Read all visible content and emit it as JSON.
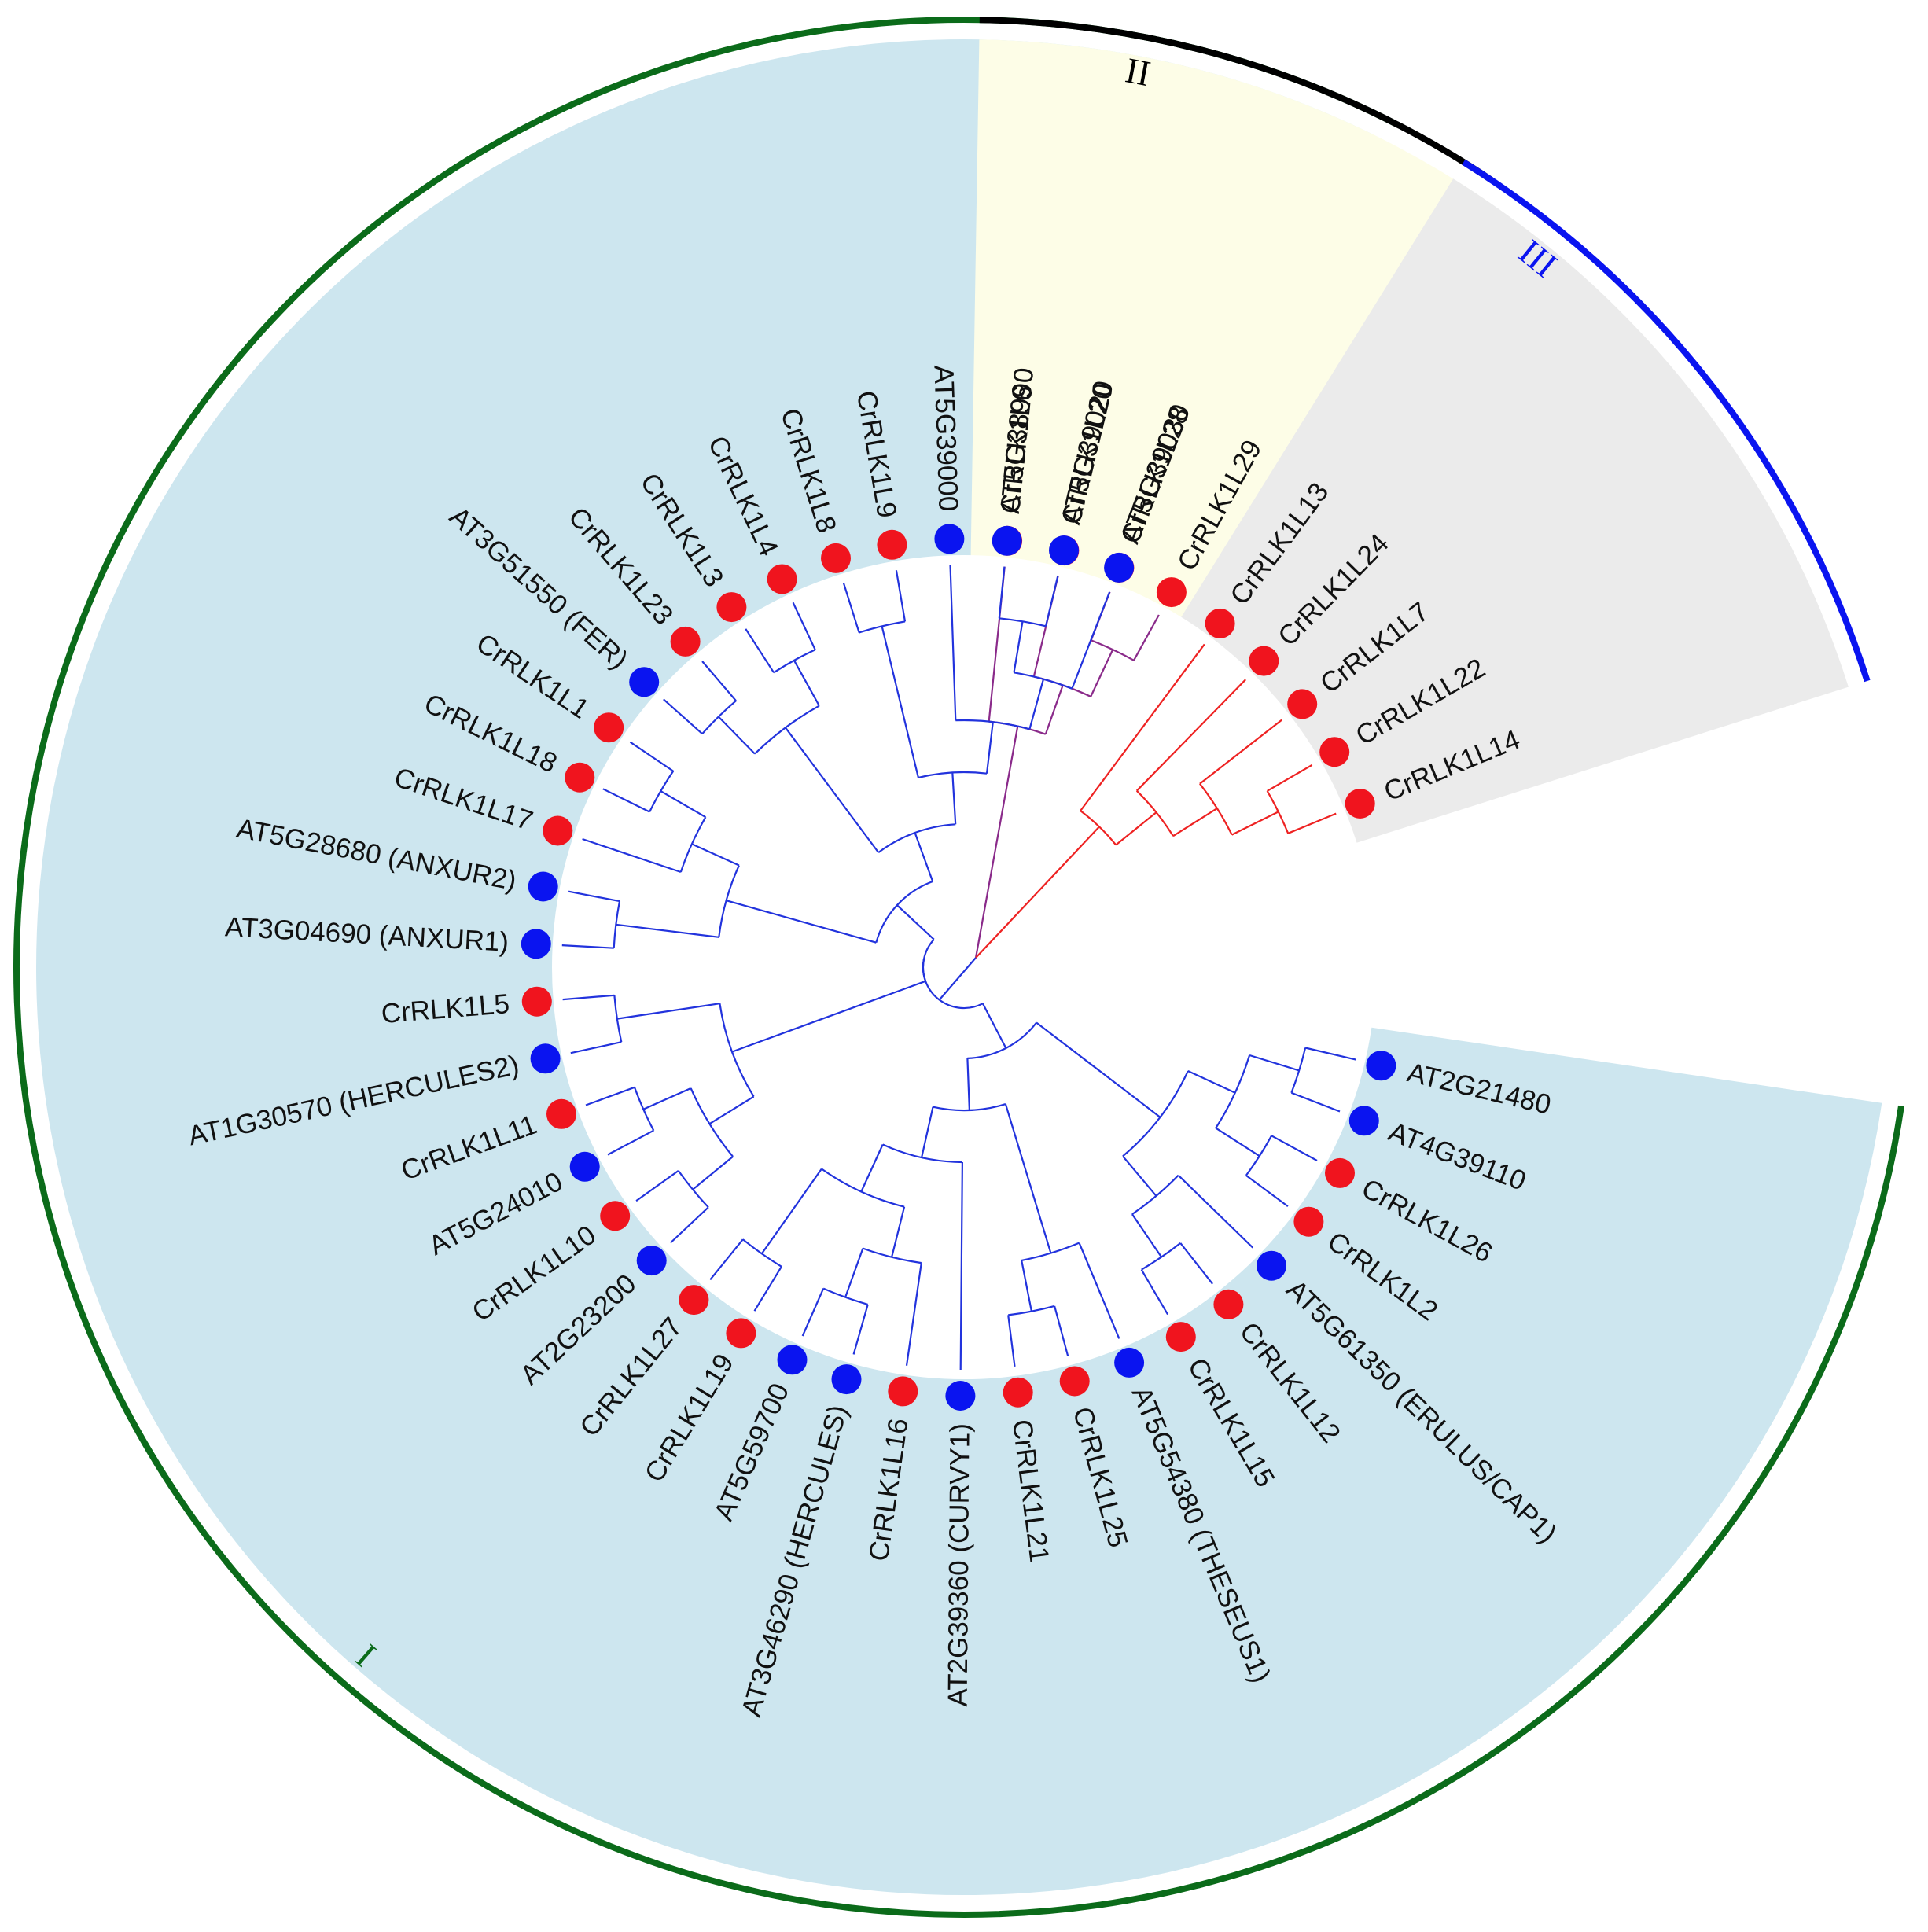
{
  "colors": {
    "arabidopsis": "#0a14f0",
    "cucumber": "#f0141e",
    "group_I": "#0b6b1a",
    "group_II": "#000000",
    "group_III": "#0a14f0",
    "sector_I": "#cde6ef",
    "sector_II": "#fdfde7",
    "sector_III": "#ebebeb",
    "branches_I": "#2233dd",
    "branches_II": "#8a2a8a",
    "branches_III": "#ee2222"
  },
  "groups": [
    {
      "id": "I",
      "label": "I"
    },
    {
      "id": "II",
      "label": "II"
    },
    {
      "id": "III",
      "label": "III"
    }
  ],
  "leaves": [
    {
      "label": "CrRLK1L6",
      "group": "II",
      "species": "cucumber"
    },
    {
      "label": "CrRLK1L20",
      "group": "II",
      "species": "cucumber"
    },
    {
      "label": "CrRLK1L28",
      "group": "II",
      "species": "cucumber"
    },
    {
      "label": "CrRLK1L29",
      "group": "II",
      "species": "cucumber"
    },
    {
      "label": "CrRLK1L13",
      "group": "III",
      "species": "cucumber"
    },
    {
      "label": "CrRLK1L24",
      "group": "III",
      "species": "cucumber"
    },
    {
      "label": "CrRLK1L7",
      "group": "III",
      "species": "cucumber"
    },
    {
      "label": "CrRLK1L22",
      "group": "III",
      "species": "cucumber"
    },
    {
      "label": "CrRLK1L14",
      "group": "III",
      "species": "cucumber"
    },
    {
      "label": "AT2G21480",
      "group": "I",
      "species": "arabidopsis"
    },
    {
      "label": "AT4G39110",
      "group": "I",
      "species": "arabidopsis"
    },
    {
      "label": "CrRLK1L26",
      "group": "I",
      "species": "cucumber"
    },
    {
      "label": "CrRLK1L2",
      "group": "I",
      "species": "cucumber"
    },
    {
      "label": "AT5G61350 (ERULUS/CAP1)",
      "group": "I",
      "species": "arabidopsis"
    },
    {
      "label": "CrRLK1L12",
      "group": "I",
      "species": "cucumber"
    },
    {
      "label": "CrRLK1L15",
      "group": "I",
      "species": "cucumber"
    },
    {
      "label": "AT5G54380 (THESEUS1)",
      "group": "I",
      "species": "arabidopsis"
    },
    {
      "label": "CrRLK1L25",
      "group": "I",
      "species": "cucumber"
    },
    {
      "label": "CrRLK1L21",
      "group": "I",
      "species": "cucumber"
    },
    {
      "label": "AT2G39360 (CURVY1)",
      "group": "I",
      "species": "arabidopsis"
    },
    {
      "label": "CrRLK1L16",
      "group": "I",
      "species": "cucumber"
    },
    {
      "label": "AT3G46290 (HERCULES)",
      "group": "I",
      "species": "arabidopsis"
    },
    {
      "label": "AT5G59700",
      "group": "I",
      "species": "arabidopsis"
    },
    {
      "label": "CrRLK1L19",
      "group": "I",
      "species": "cucumber"
    },
    {
      "label": "CrRLK1L27",
      "group": "I",
      "species": "cucumber"
    },
    {
      "label": "AT2G23200",
      "group": "I",
      "species": "arabidopsis"
    },
    {
      "label": "CrRLK1L10",
      "group": "I",
      "species": "cucumber"
    },
    {
      "label": "AT5G24010",
      "group": "I",
      "species": "arabidopsis"
    },
    {
      "label": "CrRLK1L11",
      "group": "I",
      "species": "cucumber"
    },
    {
      "label": "AT1G30570 (HERCULES2)",
      "group": "I",
      "species": "arabidopsis"
    },
    {
      "label": "CrRLK1L5",
      "group": "I",
      "species": "cucumber"
    },
    {
      "label": "AT3G04690 (ANXUR1)",
      "group": "I",
      "species": "arabidopsis"
    },
    {
      "label": "AT5G28680 (ANXUR2)",
      "group": "I",
      "species": "arabidopsis"
    },
    {
      "label": "CrRLK1L17",
      "group": "I",
      "species": "cucumber"
    },
    {
      "label": "CrRLK1L18",
      "group": "I",
      "species": "cucumber"
    },
    {
      "label": "CrRLK1L1",
      "group": "I",
      "species": "cucumber"
    },
    {
      "label": "AT3G51550 (FER)",
      "group": "I",
      "species": "arabidopsis"
    },
    {
      "label": "CrRLK1L23",
      "group": "I",
      "species": "cucumber"
    },
    {
      "label": "CrRLK1L3",
      "group": "I",
      "species": "cucumber"
    },
    {
      "label": "CrRLK1L4",
      "group": "I",
      "species": "cucumber"
    },
    {
      "label": "CrRLK1L8",
      "group": "I",
      "species": "cucumber"
    },
    {
      "label": "CrRLK1L9",
      "group": "I",
      "species": "cucumber"
    },
    {
      "label": "AT5G39000",
      "group": "I",
      "species": "arabidopsis"
    },
    {
      "label": "AT5G38990",
      "group": "I",
      "species": "arabidopsis"
    },
    {
      "label": "AT5G39020",
      "group": "I",
      "species": "arabidopsis"
    },
    {
      "label": "AT5G39030",
      "group": "I",
      "species": "arabidopsis"
    }
  ],
  "tree": {
    "c": [
      {
        "c": [
          [
            0
          ],
          [
            1,
            [
              2,
              3
            ]
          ]
        ]
      },
      {
        "c": [
          4,
          [
            5,
            [
              6,
              [
                7,
                8
              ]
            ]
          ]
        ]
      },
      {
        "c": [
          {
            "c": [
              [
                [
                  [
                    9,
                    10
                  ],
                  [
                    11,
                    12
                  ]
                ],
                [
                  13,
                  [
                    14,
                    15
                  ]
                ]
              ],
              [
                [
                  16,
                  [
                    17,
                    18
                  ]
                ],
                [
                  19,
                  [
                    [
                      20,
                      [
                        21,
                        22
                      ]
                    ],
                    [
                      23,
                      24
                    ]
                  ]
                ]
              ]
            ]
          },
          {
            "c": [
              {
                "c": [
                  [
                    [
                      25,
                      26
                    ],
                    [
                      27,
                      28
                    ]
                  ],
                  [
                    29,
                    30
                  ]
                ]
              },
              {
                "c": [
                  [
                    [
                      31,
                      32
                    ],
                    [
                      33,
                      [
                        34,
                        35
                      ]
                    ]
                  ],
                  [
                    [
                      [
                        36,
                        37
                      ],
                      [
                        38,
                        39
                      ]
                    ],
                    [
                      [
                        40,
                        41
                      ],
                      [
                        42,
                        [
                          [
                            43,
                            44
                          ],
                          45
                        ]
                      ]
                    ]
                  ]
                ]
              }
            ]
          }
        ]
      }
    ]
  }
}
